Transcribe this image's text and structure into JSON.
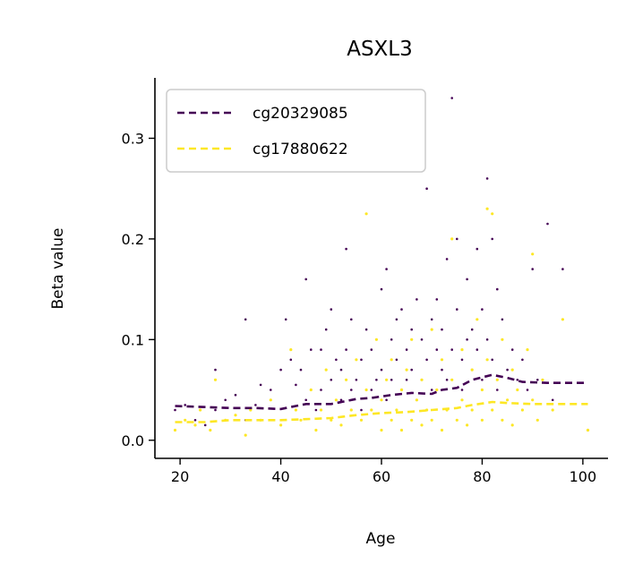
{
  "chart_data": {
    "type": "scatter",
    "title": "ASXL3",
    "xlabel": "Age",
    "ylabel": "Beta value",
    "xlim": [
      15,
      105
    ],
    "ylim": [
      -0.018,
      0.36
    ],
    "xticks": [
      20,
      40,
      60,
      80,
      100
    ],
    "yticks": [
      0.0,
      0.1,
      0.2,
      0.3
    ],
    "xtick_labels": [
      "20",
      "40",
      "60",
      "80",
      "100"
    ],
    "ytick_labels": [
      "0.0",
      "0.1",
      "0.2",
      "0.3"
    ],
    "grid": false,
    "legend_position": "top-left",
    "series": [
      {
        "name": "cg20329085",
        "color": "#440154",
        "trend": [
          [
            19,
            0.034
          ],
          [
            25,
            0.033
          ],
          [
            30,
            0.032
          ],
          [
            35,
            0.032
          ],
          [
            40,
            0.031
          ],
          [
            45,
            0.036
          ],
          [
            50,
            0.036
          ],
          [
            55,
            0.041
          ],
          [
            58,
            0.042
          ],
          [
            62,
            0.045
          ],
          [
            66,
            0.047
          ],
          [
            70,
            0.046
          ],
          [
            72,
            0.05
          ],
          [
            75,
            0.052
          ],
          [
            78,
            0.06
          ],
          [
            82,
            0.065
          ],
          [
            85,
            0.062
          ],
          [
            88,
            0.058
          ],
          [
            93,
            0.057
          ],
          [
            101,
            0.057
          ]
        ],
        "points": [
          [
            19,
            0.03
          ],
          [
            21,
            0.035
          ],
          [
            23,
            0.02
          ],
          [
            25,
            0.015
          ],
          [
            27,
            0.07
          ],
          [
            27,
            0.03
          ],
          [
            29,
            0.04
          ],
          [
            31,
            0.045
          ],
          [
            33,
            0.12
          ],
          [
            33,
            0.02
          ],
          [
            35,
            0.035
          ],
          [
            36,
            0.055
          ],
          [
            38,
            0.05
          ],
          [
            40,
            0.07
          ],
          [
            41,
            0.12
          ],
          [
            42,
            0.08
          ],
          [
            43,
            0.055
          ],
          [
            44,
            0.07
          ],
          [
            45,
            0.04
          ],
          [
            45,
            0.16
          ],
          [
            46,
            0.09
          ],
          [
            47,
            0.03
          ],
          [
            48,
            0.05
          ],
          [
            48,
            0.09
          ],
          [
            49,
            0.11
          ],
          [
            50,
            0.06
          ],
          [
            50,
            0.13
          ],
          [
            51,
            0.08
          ],
          [
            52,
            0.07
          ],
          [
            52,
            0.04
          ],
          [
            53,
            0.19
          ],
          [
            53,
            0.09
          ],
          [
            54,
            0.12
          ],
          [
            54,
            0.05
          ],
          [
            55,
            0.06
          ],
          [
            56,
            0.08
          ],
          [
            56,
            0.03
          ],
          [
            57,
            0.11
          ],
          [
            58,
            0.05
          ],
          [
            58,
            0.09
          ],
          [
            59,
            0.06
          ],
          [
            60,
            0.15
          ],
          [
            60,
            0.07
          ],
          [
            61,
            0.17
          ],
          [
            61,
            0.04
          ],
          [
            62,
            0.1
          ],
          [
            62,
            0.06
          ],
          [
            63,
            0.12
          ],
          [
            63,
            0.08
          ],
          [
            64,
            0.05
          ],
          [
            64,
            0.13
          ],
          [
            65,
            0.09
          ],
          [
            65,
            0.06
          ],
          [
            66,
            0.11
          ],
          [
            66,
            0.07
          ],
          [
            67,
            0.14
          ],
          [
            67,
            0.04
          ],
          [
            68,
            0.1
          ],
          [
            68,
            0.06
          ],
          [
            69,
            0.25
          ],
          [
            69,
            0.08
          ],
          [
            70,
            0.12
          ],
          [
            70,
            0.05
          ],
          [
            71,
            0.09
          ],
          [
            71,
            0.14
          ],
          [
            72,
            0.07
          ],
          [
            72,
            0.11
          ],
          [
            73,
            0.18
          ],
          [
            73,
            0.06
          ],
          [
            74,
            0.34
          ],
          [
            74,
            0.09
          ],
          [
            75,
            0.2
          ],
          [
            75,
            0.13
          ],
          [
            76,
            0.08
          ],
          [
            76,
            0.05
          ],
          [
            77,
            0.16
          ],
          [
            77,
            0.1
          ],
          [
            78,
            0.11
          ],
          [
            78,
            0.07
          ],
          [
            79,
            0.19
          ],
          [
            79,
            0.09
          ],
          [
            80,
            0.13
          ],
          [
            80,
            0.06
          ],
          [
            81,
            0.26
          ],
          [
            81,
            0.1
          ],
          [
            82,
            0.2
          ],
          [
            82,
            0.08
          ],
          [
            83,
            0.15
          ],
          [
            83,
            0.05
          ],
          [
            84,
            0.12
          ],
          [
            85,
            0.07
          ],
          [
            86,
            0.09
          ],
          [
            87,
            0.06
          ],
          [
            88,
            0.08
          ],
          [
            89,
            0.05
          ],
          [
            90,
            0.17
          ],
          [
            91,
            0.06
          ],
          [
            93,
            0.215
          ],
          [
            94,
            0.04
          ],
          [
            96,
            0.17
          ],
          [
            101,
            0.01
          ]
        ]
      },
      {
        "name": "cg17880622",
        "color": "#fde725",
        "trend": [
          [
            19,
            0.018
          ],
          [
            25,
            0.018
          ],
          [
            30,
            0.02
          ],
          [
            35,
            0.02
          ],
          [
            40,
            0.02
          ],
          [
            45,
            0.021
          ],
          [
            50,
            0.022
          ],
          [
            55,
            0.025
          ],
          [
            60,
            0.027
          ],
          [
            65,
            0.028
          ],
          [
            70,
            0.03
          ],
          [
            75,
            0.032
          ],
          [
            78,
            0.035
          ],
          [
            82,
            0.038
          ],
          [
            85,
            0.037
          ],
          [
            90,
            0.036
          ],
          [
            95,
            0.036
          ],
          [
            101,
            0.036
          ]
        ],
        "points": [
          [
            19,
            0.01
          ],
          [
            21,
            0.02
          ],
          [
            23,
            0.015
          ],
          [
            24,
            0.03
          ],
          [
            26,
            0.01
          ],
          [
            27,
            0.06
          ],
          [
            29,
            0.02
          ],
          [
            31,
            0.025
          ],
          [
            33,
            0.005
          ],
          [
            34,
            0.03
          ],
          [
            36,
            0.02
          ],
          [
            38,
            0.04
          ],
          [
            40,
            0.015
          ],
          [
            42,
            0.09
          ],
          [
            43,
            0.03
          ],
          [
            44,
            0.02
          ],
          [
            46,
            0.05
          ],
          [
            47,
            0.01
          ],
          [
            48,
            0.03
          ],
          [
            49,
            0.07
          ],
          [
            50,
            0.02
          ],
          [
            51,
            0.04
          ],
          [
            52,
            0.015
          ],
          [
            53,
            0.06
          ],
          [
            54,
            0.03
          ],
          [
            55,
            0.08
          ],
          [
            56,
            0.02
          ],
          [
            57,
            0.225
          ],
          [
            57,
            0.05
          ],
          [
            58,
            0.03
          ],
          [
            59,
            0.1
          ],
          [
            60,
            0.01
          ],
          [
            60,
            0.04
          ],
          [
            61,
            0.06
          ],
          [
            62,
            0.02
          ],
          [
            62,
            0.08
          ],
          [
            63,
            0.03
          ],
          [
            64,
            0.05
          ],
          [
            64,
            0.01
          ],
          [
            65,
            0.07
          ],
          [
            66,
            0.02
          ],
          [
            66,
            0.1
          ],
          [
            67,
            0.04
          ],
          [
            68,
            0.015
          ],
          [
            68,
            0.06
          ],
          [
            69,
            0.03
          ],
          [
            70,
            0.11
          ],
          [
            70,
            0.02
          ],
          [
            71,
            0.05
          ],
          [
            72,
            0.01
          ],
          [
            72,
            0.08
          ],
          [
            73,
            0.03
          ],
          [
            74,
            0.06
          ],
          [
            74,
            0.2
          ],
          [
            75,
            0.02
          ],
          [
            76,
            0.09
          ],
          [
            76,
            0.04
          ],
          [
            77,
            0.015
          ],
          [
            78,
            0.07
          ],
          [
            78,
            0.03
          ],
          [
            79,
            0.12
          ],
          [
            80,
            0.05
          ],
          [
            80,
            0.02
          ],
          [
            81,
            0.23
          ],
          [
            81,
            0.08
          ],
          [
            82,
            0.03
          ],
          [
            82,
            0.225
          ],
          [
            83,
            0.06
          ],
          [
            84,
            0.02
          ],
          [
            84,
            0.1
          ],
          [
            85,
            0.04
          ],
          [
            86,
            0.07
          ],
          [
            86,
            0.015
          ],
          [
            87,
            0.05
          ],
          [
            88,
            0.03
          ],
          [
            89,
            0.09
          ],
          [
            90,
            0.185
          ],
          [
            90,
            0.04
          ],
          [
            91,
            0.02
          ],
          [
            92,
            0.06
          ],
          [
            94,
            0.03
          ],
          [
            96,
            0.12
          ],
          [
            101,
            0.01
          ]
        ]
      }
    ]
  }
}
